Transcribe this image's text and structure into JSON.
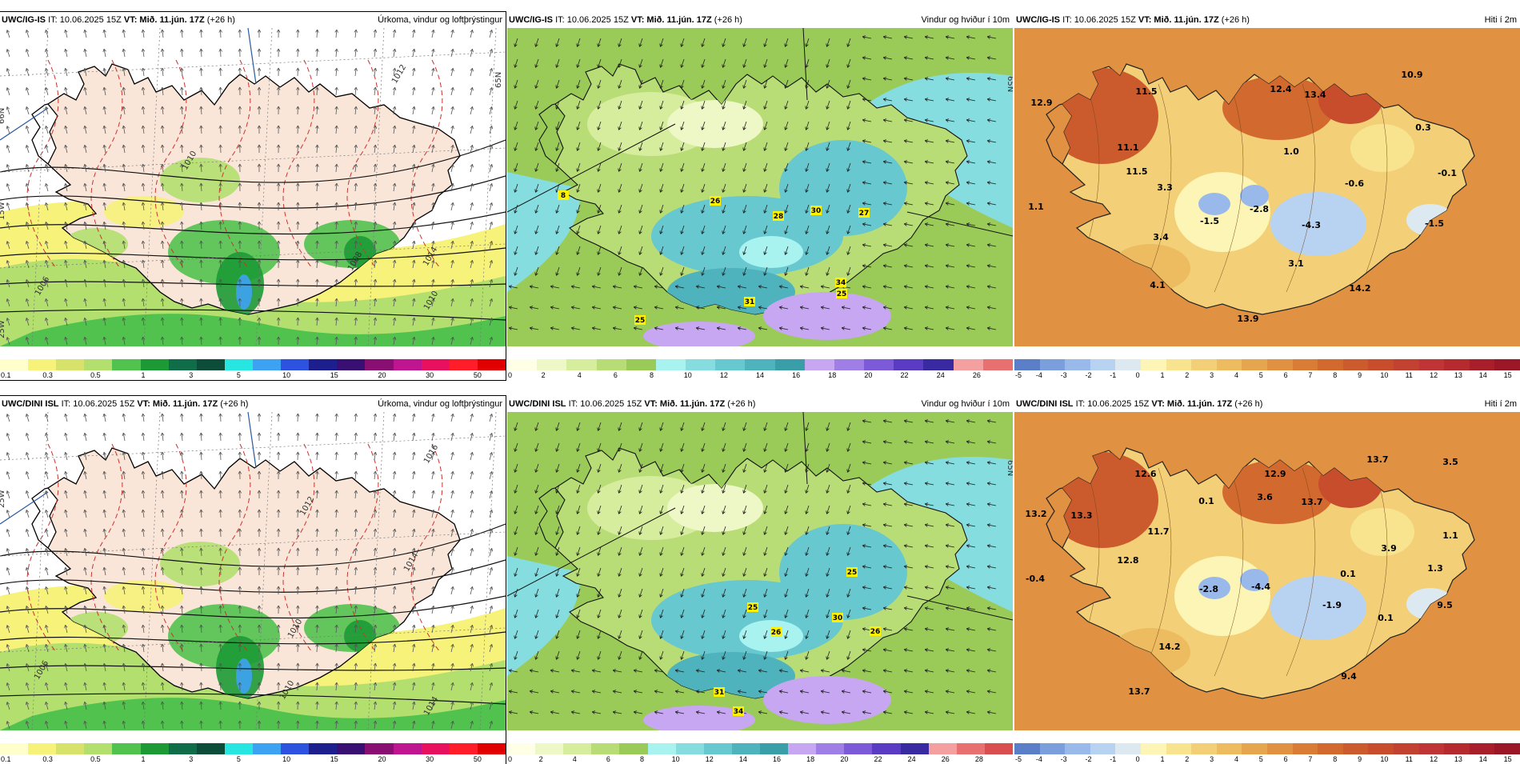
{
  "panels": [
    {
      "model": "UWC/IG-IS",
      "it_label": "IT: 10.06.2025 15Z",
      "vt_label": "VT: Mið. 11.jún. 17Z",
      "lead": "(+26 h)",
      "field": "Úrkoma, vindur og loftþrýstingur",
      "type": "precip",
      "colorbar": {
        "colors": [
          "#ffffcc",
          "#f6f27a",
          "#d7e26b",
          "#b3df6f",
          "#51c24e",
          "#1d9a35",
          "#0f6e49",
          "#0b4d39",
          "#27e6e2",
          "#3ea2f2",
          "#2d52e0",
          "#1e1f8e",
          "#3a0f74",
          "#8a0f72",
          "#c01590",
          "#ea1060",
          "#ff1d2a",
          "#e00000"
        ],
        "ticks": [
          "0.1",
          "0.3",
          "0.5",
          "1",
          "3",
          "5",
          "10",
          "15",
          "20",
          "30",
          "50"
        ]
      },
      "isobar_labels": [
        "1012",
        "1010",
        "1006",
        "1014",
        "1010",
        "1008"
      ],
      "grid_labels": [
        "66N",
        "65N",
        "25W",
        "15W"
      ]
    },
    {
      "model": "UWC/IG-IS",
      "it_label": "IT: 10.06.2025 15Z",
      "vt_label": "VT: Mið. 11.jún. 17Z",
      "lead": "(+26 h)",
      "field": "Vindur og hviður í 10m",
      "type": "wind",
      "gusts": [
        "26",
        "28",
        "30",
        "27",
        "8",
        "34",
        "31",
        "25",
        "25"
      ],
      "colorbar": {
        "colors": [
          "#ffffe6",
          "#eef7c6",
          "#d6ed9e",
          "#b9dd76",
          "#9acb58",
          "#a8f3f0",
          "#86dde0",
          "#67c8cf",
          "#4eb3bd",
          "#3a9ea9",
          "#c7a6f2",
          "#9f7ee6",
          "#7c5ad8",
          "#5a3bc4",
          "#392aa2",
          "#f4a0a0",
          "#e87070"
        ],
        "ticks": [
          "0",
          "2",
          "4",
          "6",
          "8",
          "10",
          "12",
          "14",
          "16",
          "18",
          "20",
          "22",
          "24",
          "26"
        ]
      },
      "grid_labels": [
        "65N"
      ]
    },
    {
      "model": "UWC/IG-IS",
      "it_label": "IT: 10.06.2025 15Z",
      "vt_label": "VT: Mið. 11.jún. 17Z",
      "lead": "(+26 h)",
      "field": "Hiti í 2m",
      "type": "temp",
      "values": [
        "10.9",
        "12.9",
        "11.5",
        "12.4",
        "13.4",
        "0.3",
        "11.1",
        "1.0",
        "-0.6",
        "-0.1",
        "11.5",
        "3.3",
        "1.1",
        "-1.5",
        "-2.8",
        "-4.3",
        "-1.5",
        "3.4",
        "3.1",
        "4.1",
        "14.2",
        "13.9"
      ],
      "colorbar": {
        "colors": [
          "#5b7ec9",
          "#7a9fdc",
          "#98b9ea",
          "#b8d2f2",
          "#dce9f0",
          "#fdf5b5",
          "#f8e48f",
          "#f3d077",
          "#edbc61",
          "#e6a64f",
          "#e09141",
          "#d97c36",
          "#d2692e",
          "#cb5a2c",
          "#c74d2d",
          "#c34131",
          "#bf3535",
          "#b52a2f",
          "#a81f2b",
          "#9b1626"
        ],
        "ticks": [
          "-5",
          "-4",
          "-3",
          "-2",
          "-1",
          "0",
          "1",
          "2",
          "3",
          "4",
          "5",
          "6",
          "7",
          "8",
          "9",
          "10",
          "11",
          "12",
          "13",
          "14",
          "15"
        ]
      }
    },
    {
      "model": "UWC/DINI ISL",
      "it_label": "IT: 10.06.2025 15Z",
      "vt_label": "VT: Mið. 11.jún. 17Z",
      "lead": "(+26 h)",
      "field": "Úrkoma, vindur og loftþrýstingur",
      "type": "precip",
      "colorbar": {
        "colors": [
          "#ffffcc",
          "#f6f27a",
          "#d7e26b",
          "#b3df6f",
          "#51c24e",
          "#1d9a35",
          "#0f6e49",
          "#0b4d39",
          "#27e6e2",
          "#3ea2f2",
          "#2d52e0",
          "#1e1f8e",
          "#3a0f74",
          "#8a0f72",
          "#c01590",
          "#ea1060",
          "#ff1d2a",
          "#e00000"
        ],
        "ticks": [
          "0.1",
          "0.3",
          "0.5",
          "1",
          "3",
          "5",
          "10",
          "15",
          "20",
          "30",
          "50"
        ]
      },
      "isobar_labels": [
        "1016",
        "1012",
        "1014",
        "1010",
        "1006",
        "1014",
        "1010"
      ],
      "grid_labels": [
        "25W"
      ]
    },
    {
      "model": "UWC/DINI ISL",
      "it_label": "IT: 10.06.2025 15Z",
      "vt_label": "VT: Mið. 11.jún. 17Z",
      "lead": "(+26 h)",
      "field": "Vindur og hviður í 10m",
      "type": "wind",
      "gusts": [
        "25",
        "25",
        "30",
        "26",
        "26",
        "31",
        "34"
      ],
      "colorbar": {
        "colors": [
          "#ffffe6",
          "#eef7c6",
          "#d6ed9e",
          "#b9dd76",
          "#9acb58",
          "#a8f3f0",
          "#86dde0",
          "#67c8cf",
          "#4eb3bd",
          "#3a9ea9",
          "#c7a6f2",
          "#9f7ee6",
          "#7c5ad8",
          "#5a3bc4",
          "#392aa2",
          "#f4a0a0",
          "#e87070",
          "#d94e4e"
        ],
        "ticks": [
          "0",
          "2",
          "4",
          "6",
          "8",
          "10",
          "12",
          "14",
          "16",
          "18",
          "20",
          "22",
          "24",
          "26",
          "28"
        ]
      },
      "grid_labels": [
        "65N"
      ]
    },
    {
      "model": "UWC/DINI ISL",
      "it_label": "IT: 10.06.2025 15Z",
      "vt_label": "VT: Mið. 11.jún. 17Z",
      "lead": "(+26 h)",
      "field": "Hiti í 2m",
      "type": "temp",
      "values": [
        "13.7",
        "3.5",
        "12.6",
        "12.9",
        "13.2",
        "13.3",
        "3.6",
        "13.7",
        "0.1",
        "11.7",
        "1.1",
        "3.9",
        "12.8",
        "0.1",
        "1.3",
        "-0.4",
        "-2.8",
        "-4.4",
        "-1.9",
        "0.1",
        "9.5",
        "14.2",
        "9.4",
        "13.7"
      ],
      "colorbar": {
        "colors": [
          "#5b7ec9",
          "#7a9fdc",
          "#98b9ea",
          "#b8d2f2",
          "#dce9f0",
          "#fdf5b5",
          "#f8e48f",
          "#f3d077",
          "#edbc61",
          "#e6a64f",
          "#e09141",
          "#d97c36",
          "#d2692e",
          "#cb5a2c",
          "#c74d2d",
          "#c34131",
          "#bf3535",
          "#b52a2f",
          "#a81f2b",
          "#9b1626"
        ],
        "ticks": [
          "-5",
          "-4",
          "-3",
          "-2",
          "-1",
          "0",
          "1",
          "2",
          "3",
          "4",
          "5",
          "6",
          "7",
          "8",
          "9",
          "10",
          "11",
          "12",
          "13",
          "14",
          "15"
        ]
      }
    }
  ]
}
